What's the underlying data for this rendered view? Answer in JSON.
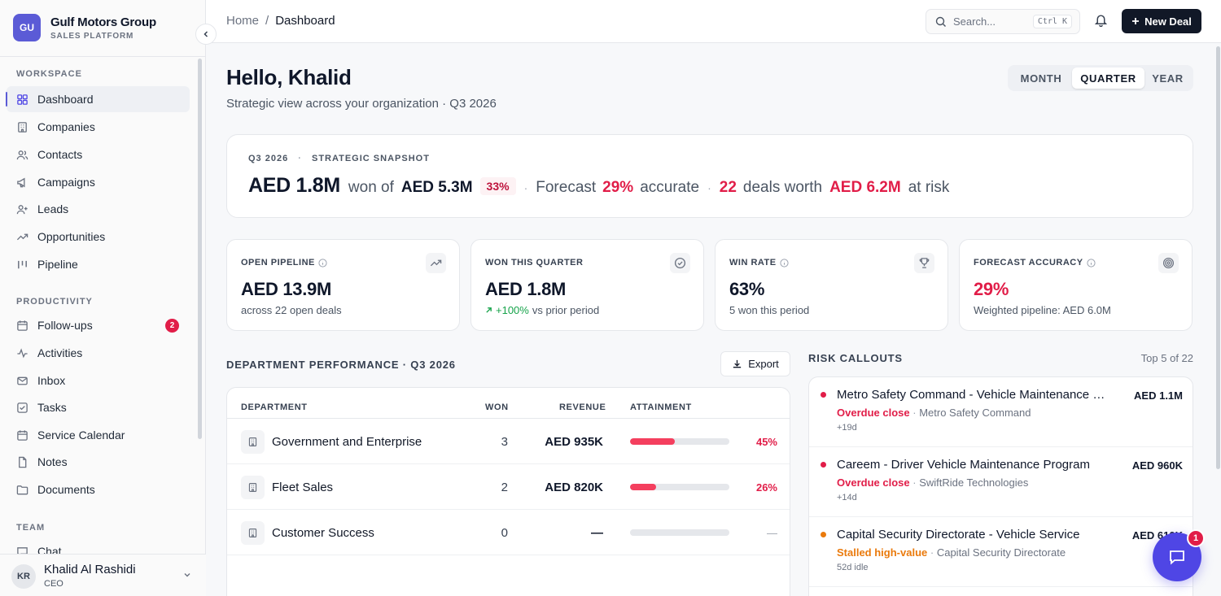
{
  "brand": {
    "logo": "GU",
    "name": "Gulf Motors Group",
    "subtitle": "SALES PLATFORM"
  },
  "sidebar": {
    "workspace_label": "WORKSPACE",
    "productivity_label": "PRODUCTIVITY",
    "team_label": "TEAM",
    "workspace": [
      {
        "label": "Dashboard",
        "icon": "grid-icon",
        "active": true
      },
      {
        "label": "Companies",
        "icon": "building-icon"
      },
      {
        "label": "Contacts",
        "icon": "users-icon"
      },
      {
        "label": "Campaigns",
        "icon": "megaphone-icon"
      },
      {
        "label": "Leads",
        "icon": "user-plus-icon"
      },
      {
        "label": "Opportunities",
        "icon": "trend-icon"
      },
      {
        "label": "Pipeline",
        "icon": "columns-icon"
      }
    ],
    "productivity": [
      {
        "label": "Follow-ups",
        "icon": "calendar-clock-icon",
        "badge": "2"
      },
      {
        "label": "Activities",
        "icon": "activity-icon"
      },
      {
        "label": "Inbox",
        "icon": "mail-icon"
      },
      {
        "label": "Tasks",
        "icon": "checkbox-icon"
      },
      {
        "label": "Service Calendar",
        "icon": "calendar-icon"
      },
      {
        "label": "Notes",
        "icon": "file-icon"
      },
      {
        "label": "Documents",
        "icon": "folder-icon"
      }
    ],
    "team": [
      {
        "label": "Chat",
        "icon": "chat-icon"
      }
    ]
  },
  "user": {
    "initials": "KR",
    "name": "Khalid Al Rashidi",
    "role": "CEO"
  },
  "topbar": {
    "breadcrumb": [
      "Home",
      "Dashboard"
    ],
    "search_placeholder": "Search...",
    "search_shortcut": "Ctrl K",
    "new_deal": "New Deal"
  },
  "header": {
    "greeting": "Hello, Khalid",
    "subtitle": "Strategic view across your organization · Q3 2026",
    "periods": [
      "MONTH",
      "QUARTER",
      "YEAR"
    ],
    "active_period": "QUARTER"
  },
  "snapshot": {
    "quarter": "Q3 2026",
    "label": "STRATEGIC SNAPSHOT",
    "won": "AED 1.8M",
    "won_of": "won of",
    "target": "AED 5.3M",
    "pct": "33%",
    "forecast_label": "Forecast",
    "forecast_pct": "29%",
    "accurate": "accurate",
    "deals": "22",
    "deals_worth": "deals worth",
    "risk_amount": "AED 6.2M",
    "at_risk": "at risk"
  },
  "kpis": [
    {
      "label": "OPEN PIPELINE",
      "value": "AED 13.9M",
      "sub": "across 22 open deals",
      "icon": "trend-icon",
      "info": true
    },
    {
      "label": "WON THIS QUARTER",
      "value": "AED 1.8M",
      "change": "+100%",
      "sub": "vs prior period",
      "icon": "check-circle-icon"
    },
    {
      "label": "WIN RATE",
      "value": "63%",
      "sub": "5 won this period",
      "icon": "trophy-icon",
      "info": true
    },
    {
      "label": "FORECAST ACCURACY",
      "value": "29%",
      "sub": "Weighted pipeline: AED 6.0M",
      "icon": "target-icon",
      "info": true,
      "highlight": "#e11d48"
    }
  ],
  "departments": {
    "title": "DEPARTMENT PERFORMANCE · Q3 2026",
    "export": "Export",
    "columns": [
      "DEPARTMENT",
      "WON",
      "REVENUE",
      "ATTAINMENT"
    ],
    "rows": [
      {
        "name": "Government and Enterprise",
        "won": "3",
        "revenue": "AED 935K",
        "attainment": 0.45,
        "pct": "45%"
      },
      {
        "name": "Fleet Sales",
        "won": "2",
        "revenue": "AED 820K",
        "attainment": 0.26,
        "pct": "26%"
      },
      {
        "name": "Customer Success",
        "won": "0",
        "revenue": "—",
        "attainment": 0,
        "pct": "—"
      }
    ]
  },
  "risks": {
    "title": "RISK CALLOUTS",
    "count": "Top 5 of 22",
    "items": [
      {
        "name": "Metro Safety Command - Vehicle Maintenance Co...",
        "amount": "AED 1.1M",
        "flag": "Overdue close",
        "company": "Metro Safety Command",
        "age": "+19d",
        "color": "#e11d48"
      },
      {
        "name": "Careem - Driver Vehicle Maintenance Program",
        "amount": "AED 960K",
        "flag": "Overdue close",
        "company": "SwiftRide Technologies",
        "age": "+14d",
        "color": "#e11d48"
      },
      {
        "name": "Capital Security Directorate - Vehicle Service",
        "amount": "AED 610K",
        "flag": "Stalled high-value",
        "company": "Capital Security Directorate",
        "age": "52d idle",
        "color": "#ea7a0c"
      }
    ]
  },
  "chat": {
    "badge": "1"
  }
}
